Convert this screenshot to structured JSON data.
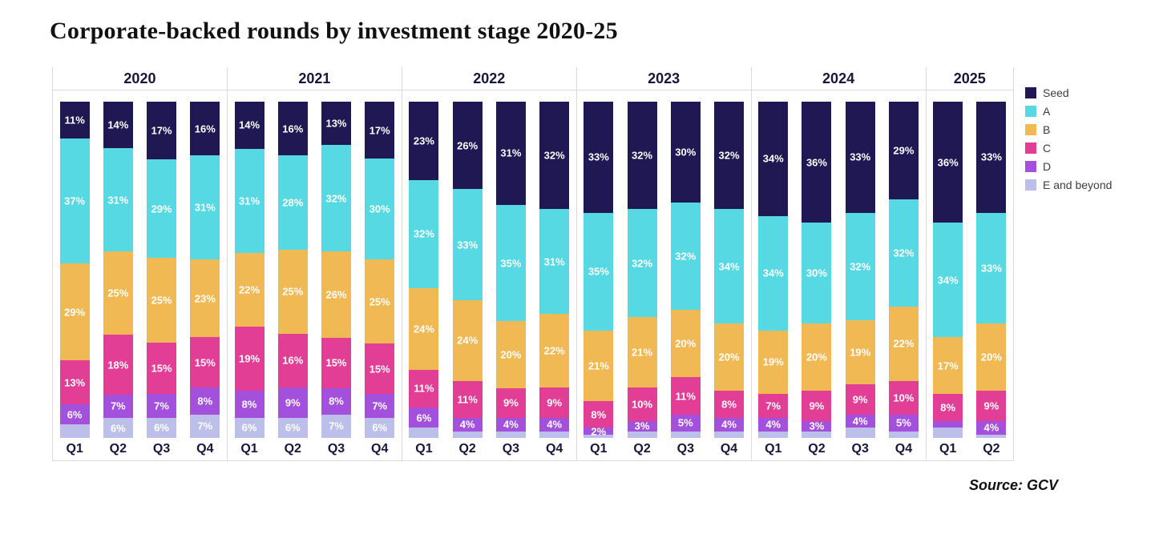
{
  "title": "Corporate-backed rounds by investment stage 2020-25",
  "source": "Source: GCV",
  "chart_data": {
    "type": "bar",
    "subtype": "stacked-100-percent",
    "title": "Corporate-backed rounds by investment stage 2020-25",
    "xlabel": "",
    "ylabel": "",
    "grid": false,
    "legend_position": "right",
    "stages": [
      {
        "key": "seed",
        "label": "Seed",
        "color": "#1f1853"
      },
      {
        "key": "a",
        "label": "A",
        "color": "#57d9e4"
      },
      {
        "key": "b",
        "label": "B",
        "color": "#f1b953"
      },
      {
        "key": "c",
        "label": "C",
        "color": "#e23e96"
      },
      {
        "key": "d",
        "label": "D",
        "color": "#a351dd"
      },
      {
        "key": "e",
        "label": "E and beyond",
        "color": "#bcbfe9"
      }
    ],
    "groups": [
      {
        "year": "2020",
        "bars": [
          {
            "quarter": "Q1",
            "values": [
              11,
              37,
              29,
              13,
              6,
              4
            ],
            "labels": [
              "11%",
              "37%",
              "29%",
              "13%",
              "6%",
              null
            ]
          },
          {
            "quarter": "Q2",
            "values": [
              14,
              31,
              25,
              18,
              7,
              6
            ],
            "labels": [
              "14%",
              "31%",
              "25%",
              "18%",
              "7%",
              "6%"
            ]
          },
          {
            "quarter": "Q3",
            "values": [
              17,
              29,
              25,
              15,
              7,
              6
            ],
            "labels": [
              "17%",
              "29%",
              "25%",
              "15%",
              "7%",
              "6%"
            ]
          },
          {
            "quarter": "Q4",
            "values": [
              16,
              31,
              23,
              15,
              8,
              7
            ],
            "labels": [
              "16%",
              "31%",
              "23%",
              "15%",
              "8%",
              "7%"
            ]
          }
        ]
      },
      {
        "year": "2021",
        "bars": [
          {
            "quarter": "Q1",
            "values": [
              14,
              31,
              22,
              19,
              8,
              6
            ],
            "labels": [
              "14%",
              "31%",
              "22%",
              "19%",
              "8%",
              "6%"
            ]
          },
          {
            "quarter": "Q2",
            "values": [
              16,
              28,
              25,
              16,
              9,
              6
            ],
            "labels": [
              "16%",
              "28%",
              "25%",
              "16%",
              "9%",
              "6%"
            ]
          },
          {
            "quarter": "Q3",
            "values": [
              13,
              32,
              26,
              15,
              8,
              7
            ],
            "labels": [
              "13%",
              "32%",
              "26%",
              "15%",
              "8%",
              "7%"
            ]
          },
          {
            "quarter": "Q4",
            "values": [
              17,
              30,
              25,
              15,
              7,
              6
            ],
            "labels": [
              "17%",
              "30%",
              "25%",
              "15%",
              "7%",
              "6%"
            ]
          }
        ]
      },
      {
        "year": "2022",
        "bars": [
          {
            "quarter": "Q1",
            "values": [
              23,
              32,
              24,
              11,
              6,
              3
            ],
            "labels": [
              "23%",
              "32%",
              "24%",
              "11%",
              "6%",
              null
            ]
          },
          {
            "quarter": "Q2",
            "values": [
              26,
              33,
              24,
              11,
              4,
              2
            ],
            "labels": [
              "26%",
              "33%",
              "24%",
              "11%",
              "4%",
              null
            ]
          },
          {
            "quarter": "Q3",
            "values": [
              31,
              35,
              20,
              9,
              4,
              2
            ],
            "labels": [
              "31%",
              "35%",
              "20%",
              "9%",
              "4%",
              null
            ]
          },
          {
            "quarter": "Q4",
            "values": [
              32,
              31,
              22,
              9,
              4,
              2
            ],
            "labels": [
              "32%",
              "31%",
              "22%",
              "9%",
              "4%",
              null
            ]
          }
        ]
      },
      {
        "year": "2023",
        "bars": [
          {
            "quarter": "Q1",
            "values": [
              33,
              35,
              21,
              8,
              2,
              1
            ],
            "labels": [
              "33%",
              "35%",
              "21%",
              "8%",
              "2%",
              null
            ]
          },
          {
            "quarter": "Q2",
            "values": [
              32,
              32,
              21,
              10,
              3,
              2
            ],
            "labels": [
              "32%",
              "32%",
              "21%",
              "10%",
              "3%",
              null
            ]
          },
          {
            "quarter": "Q3",
            "values": [
              30,
              32,
              20,
              11,
              5,
              2
            ],
            "labels": [
              "30%",
              "32%",
              "20%",
              "11%",
              "5%",
              null
            ]
          },
          {
            "quarter": "Q4",
            "values": [
              32,
              34,
              20,
              8,
              4,
              2
            ],
            "labels": [
              "32%",
              "34%",
              "20%",
              "8%",
              "4%",
              null
            ]
          }
        ]
      },
      {
        "year": "2024",
        "bars": [
          {
            "quarter": "Q1",
            "values": [
              34,
              34,
              19,
              7,
              4,
              2
            ],
            "labels": [
              "34%",
              "34%",
              "19%",
              "7%",
              "4%",
              null
            ]
          },
          {
            "quarter": "Q2",
            "values": [
              36,
              30,
              20,
              9,
              3,
              2
            ],
            "labels": [
              "36%",
              "30%",
              "20%",
              "9%",
              "3%",
              null
            ]
          },
          {
            "quarter": "Q3",
            "values": [
              33,
              32,
              19,
              9,
              4,
              3
            ],
            "labels": [
              "33%",
              "32%",
              "19%",
              "9%",
              "4%",
              null
            ]
          },
          {
            "quarter": "Q4",
            "values": [
              29,
              32,
              22,
              10,
              5,
              2
            ],
            "labels": [
              "29%",
              "32%",
              "22%",
              "10%",
              "5%",
              null
            ]
          }
        ]
      },
      {
        "year": "2025",
        "bars": [
          {
            "quarter": "Q1",
            "values": [
              36,
              34,
              17,
              8,
              2,
              3
            ],
            "labels": [
              "36%",
              "34%",
              "17%",
              "8%",
              null,
              null
            ]
          },
          {
            "quarter": "Q2",
            "values": [
              33,
              33,
              20,
              9,
              4,
              1
            ],
            "labels": [
              "33%",
              "33%",
              "20%",
              "9%",
              "4%",
              null
            ]
          }
        ]
      }
    ]
  }
}
